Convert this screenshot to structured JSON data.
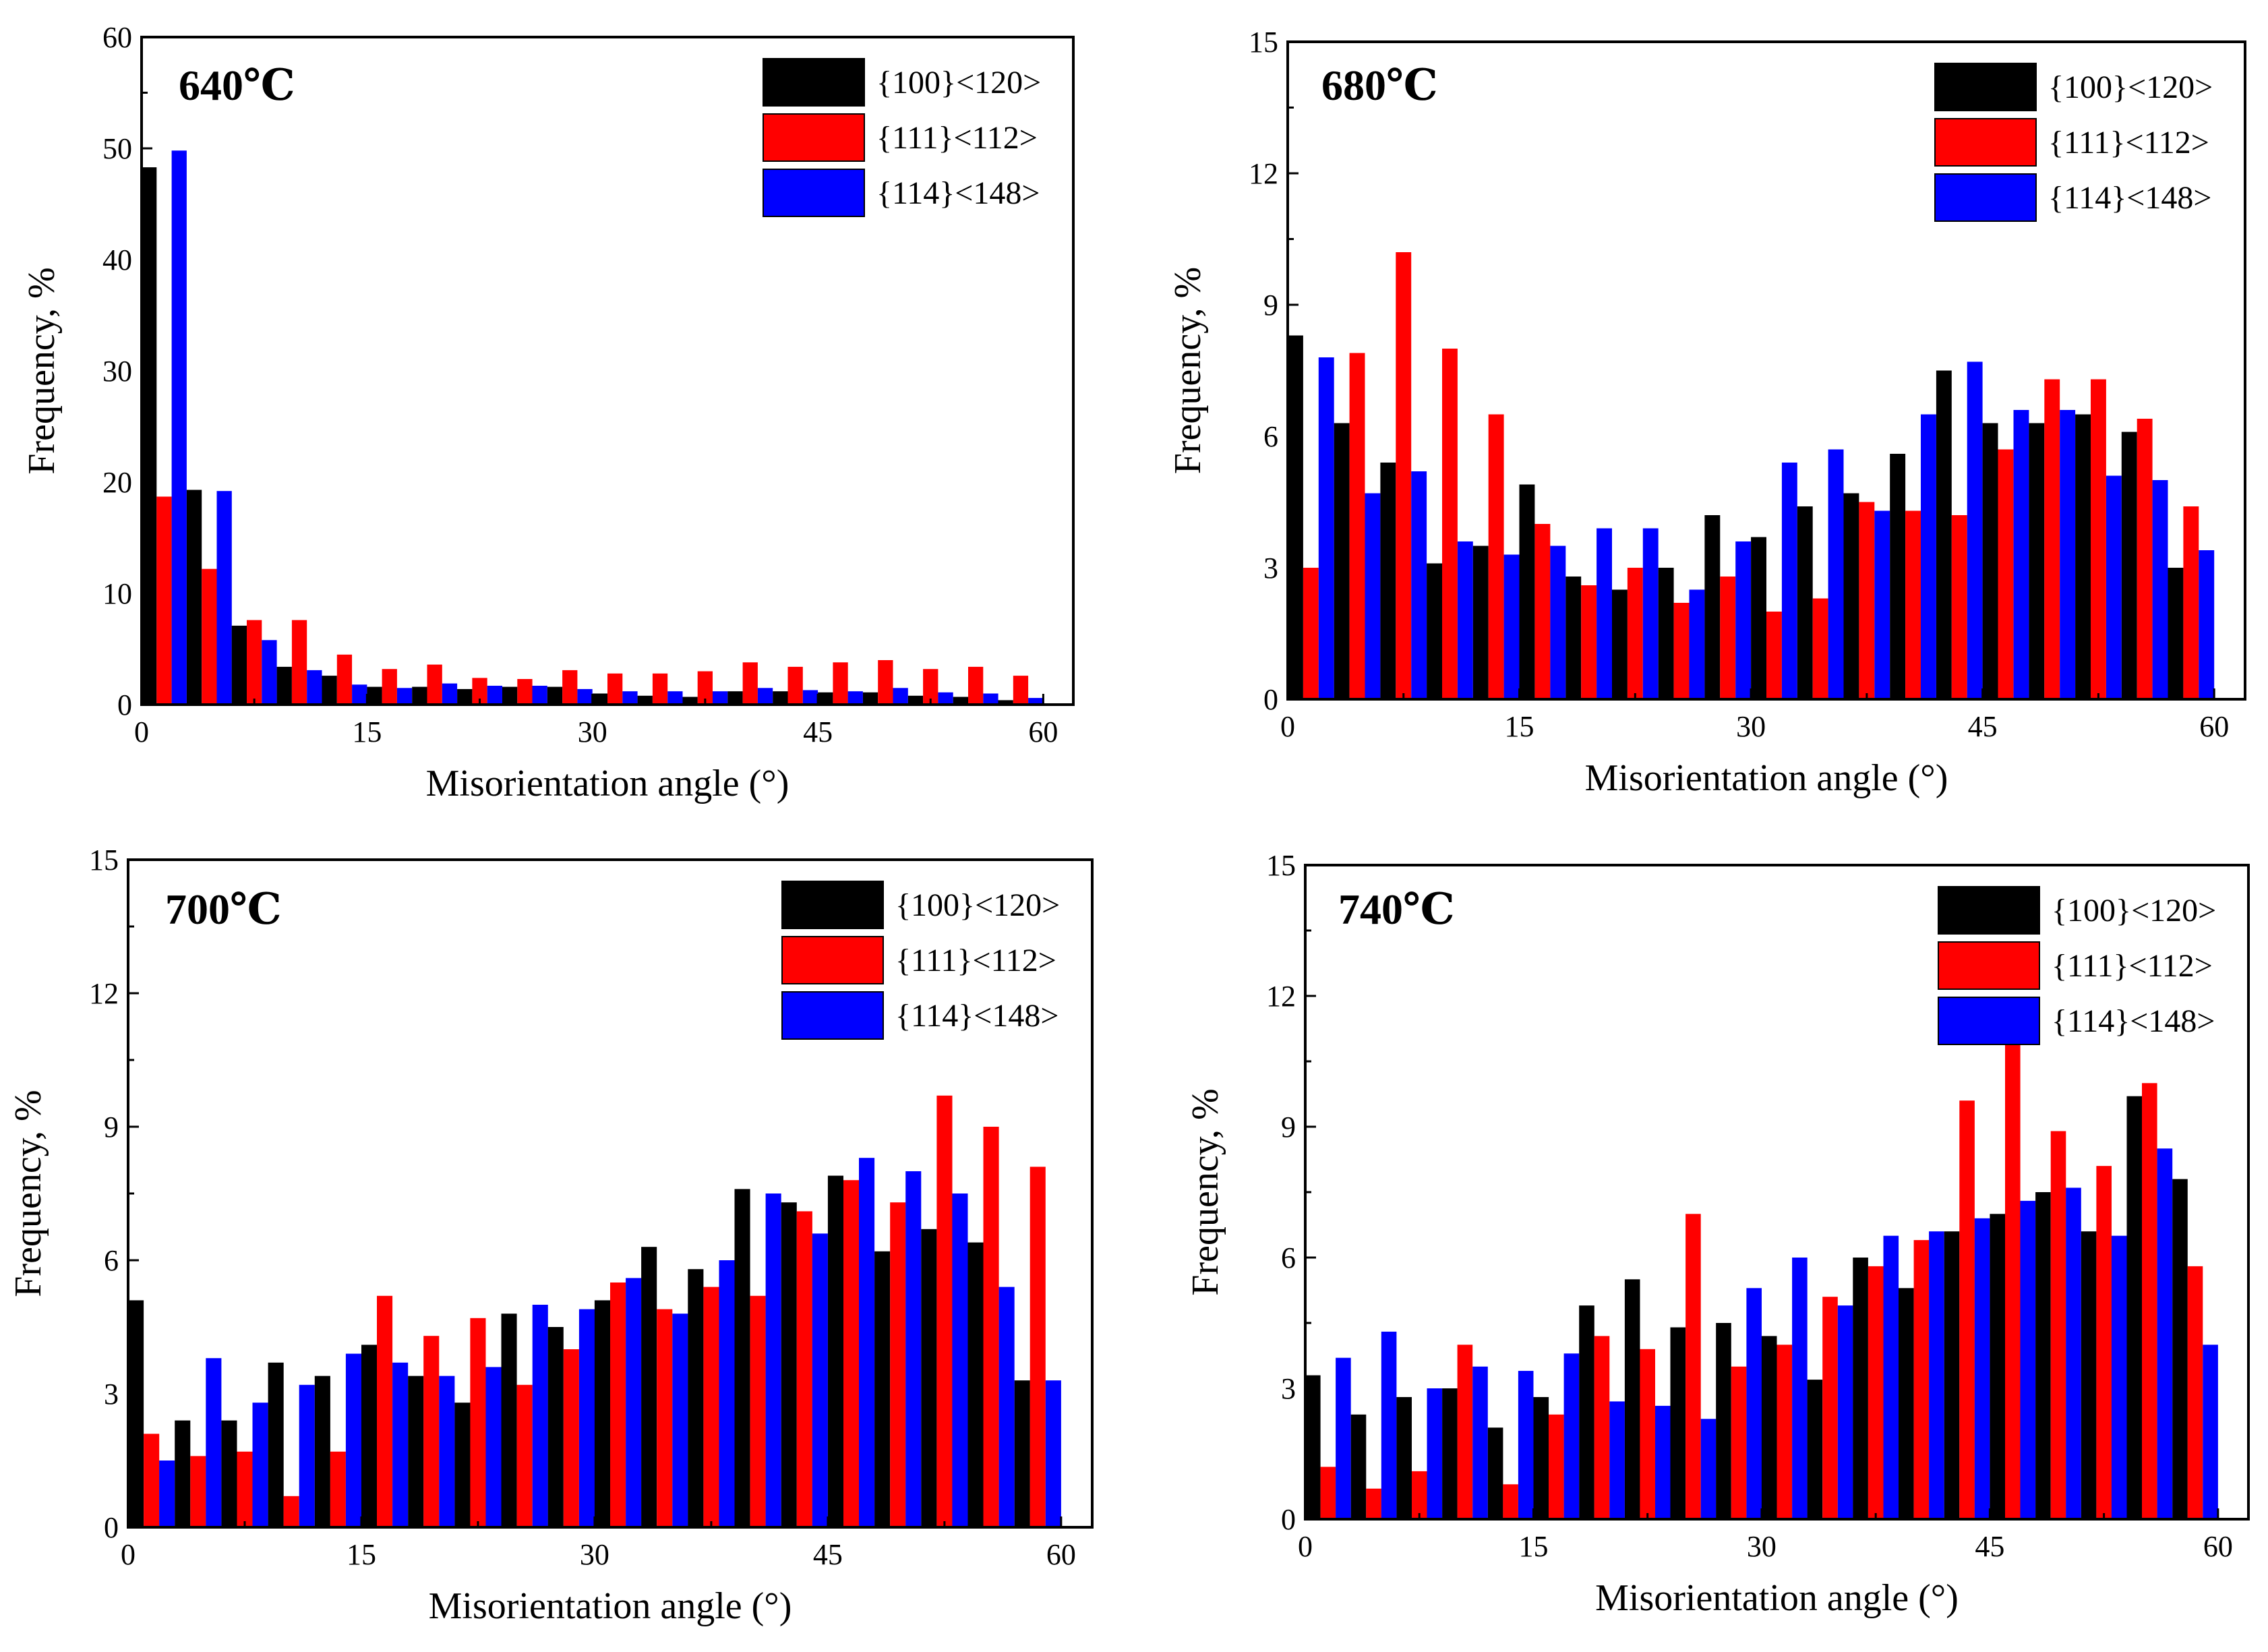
{
  "colors": {
    "s1": "#000000",
    "s2": "#ff0000",
    "s3": "#0000ff"
  },
  "chart_data": [
    {
      "type": "bar",
      "title": "640℃",
      "xlabel": "Misorientation angle (°)",
      "ylabel": "Frequency, %",
      "xlim": [
        0,
        62
      ],
      "ylim": [
        0,
        60
      ],
      "xticks": [
        0,
        15,
        30,
        45,
        60
      ],
      "yticks": [
        0,
        10,
        20,
        30,
        40,
        50,
        60
      ],
      "legend": "top-right",
      "x": [
        3,
        6,
        9,
        12,
        15,
        18,
        21,
        24,
        27,
        30,
        33,
        36,
        39,
        42,
        45,
        48,
        51,
        54,
        57,
        60
      ],
      "series": [
        {
          "name": "{100}<120>",
          "values": [
            48.3,
            19.3,
            7.1,
            3.4,
            2.6,
            1.6,
            1.6,
            1.4,
            1.6,
            1.6,
            1.0,
            0.8,
            0.7,
            1.2,
            1.2,
            1.1,
            1.1,
            0.8,
            0.7,
            0.4
          ]
        },
        {
          "name": "{111}<112>",
          "values": [
            18.7,
            12.2,
            7.6,
            7.6,
            4.5,
            3.2,
            3.6,
            2.4,
            2.3,
            3.1,
            2.8,
            2.8,
            3.0,
            3.8,
            3.4,
            3.8,
            4.0,
            3.2,
            3.4,
            2.6
          ]
        },
        {
          "name": "{114}<148>",
          "values": [
            49.8,
            19.2,
            5.8,
            3.1,
            1.8,
            1.5,
            1.9,
            1.7,
            1.7,
            1.4,
            1.2,
            1.2,
            1.2,
            1.5,
            1.3,
            1.2,
            1.5,
            1.1,
            1.0,
            0.6
          ]
        }
      ]
    },
    {
      "type": "bar",
      "title": "680℃",
      "xlabel": "Misorientation angle (°)",
      "ylabel": "Frequency, %",
      "xlim": [
        0,
        62
      ],
      "ylim": [
        0,
        15
      ],
      "xticks": [
        0,
        15,
        30,
        45,
        60
      ],
      "yticks": [
        0,
        3,
        6,
        9,
        12,
        15
      ],
      "legend": "top-right",
      "x": [
        3,
        6,
        9,
        12,
        15,
        18,
        21,
        24,
        27,
        30,
        33,
        36,
        39,
        42,
        45,
        48,
        51,
        54,
        57,
        60
      ],
      "series": [
        {
          "name": "{100}<120>",
          "values": [
            8.3,
            6.3,
            5.4,
            3.1,
            3.5,
            4.9,
            2.8,
            2.5,
            3.0,
            4.2,
            3.7,
            4.4,
            4.7,
            5.6,
            7.5,
            6.3,
            6.3,
            6.5,
            6.1,
            3.0
          ]
        },
        {
          "name": "{111}<112>",
          "values": [
            3.0,
            7.9,
            10.2,
            8.0,
            6.5,
            4.0,
            2.6,
            3.0,
            2.2,
            2.8,
            2.0,
            2.3,
            4.5,
            4.3,
            4.2,
            5.7,
            7.3,
            7.3,
            6.4,
            4.4
          ]
        },
        {
          "name": "{114}<148>",
          "values": [
            7.8,
            4.7,
            5.2,
            3.6,
            3.3,
            3.5,
            3.9,
            3.9,
            2.5,
            3.6,
            5.4,
            5.7,
            4.3,
            6.5,
            7.7,
            6.6,
            6.6,
            5.1,
            5.0,
            3.4
          ]
        }
      ]
    },
    {
      "type": "bar",
      "title": "700℃",
      "xlabel": "Misorientation angle (°)",
      "ylabel": "Frequency, %",
      "xlim": [
        0,
        62
      ],
      "ylim": [
        0,
        15
      ],
      "xticks": [
        0,
        15,
        30,
        45,
        60
      ],
      "yticks": [
        0,
        3,
        6,
        9,
        12,
        15
      ],
      "legend": "top-right",
      "x": [
        3,
        6,
        9,
        12,
        15,
        18,
        21,
        24,
        27,
        30,
        33,
        36,
        39,
        42,
        45,
        48,
        51,
        54,
        57,
        60
      ],
      "series": [
        {
          "name": "{100}<120>",
          "values": [
            5.1,
            2.4,
            2.4,
            3.7,
            3.4,
            4.1,
            3.4,
            2.8,
            4.8,
            4.5,
            5.1,
            6.3,
            5.8,
            7.6,
            7.3,
            7.9,
            6.2,
            6.7,
            6.4,
            3.3
          ]
        },
        {
          "name": "{111}<112>",
          "values": [
            2.1,
            1.6,
            1.7,
            0.7,
            1.7,
            5.2,
            4.3,
            4.7,
            3.2,
            4.0,
            5.5,
            4.9,
            5.4,
            5.2,
            7.1,
            7.8,
            7.3,
            9.7,
            9.0,
            8.1
          ]
        },
        {
          "name": "{114}<148>",
          "values": [
            1.5,
            3.8,
            2.8,
            3.2,
            3.9,
            3.7,
            3.4,
            3.6,
            5.0,
            4.9,
            5.6,
            4.8,
            6.0,
            7.5,
            6.6,
            8.3,
            8.0,
            7.5,
            5.4,
            3.3
          ]
        }
      ]
    },
    {
      "type": "bar",
      "title": "740℃",
      "xlabel": "Misorientation angle (°)",
      "ylabel": "Frequency, %",
      "xlim": [
        0,
        62
      ],
      "ylim": [
        0,
        15
      ],
      "xticks": [
        0,
        15,
        30,
        45,
        60
      ],
      "yticks": [
        0,
        3,
        6,
        9,
        12,
        15
      ],
      "legend": "top-right",
      "x": [
        3,
        6,
        9,
        12,
        15,
        18,
        21,
        24,
        27,
        30,
        33,
        36,
        39,
        42,
        45,
        48,
        51,
        54,
        57,
        60
      ],
      "series": [
        {
          "name": "{100}<120>",
          "values": [
            3.3,
            2.4,
            2.8,
            3.0,
            2.1,
            2.8,
            4.9,
            5.5,
            4.4,
            4.5,
            4.2,
            3.2,
            6.0,
            5.3,
            6.6,
            7.0,
            7.5,
            6.6,
            9.7,
            7.8
          ]
        },
        {
          "name": "{111}<112>",
          "values": [
            1.2,
            0.7,
            1.1,
            4.0,
            0.8,
            2.4,
            4.2,
            3.9,
            7.0,
            3.5,
            4.0,
            5.1,
            5.8,
            6.4,
            9.6,
            10.9,
            8.9,
            8.1,
            10.0,
            5.8
          ]
        },
        {
          "name": "{114}<148>",
          "values": [
            3.7,
            4.3,
            3.0,
            3.5,
            3.4,
            3.8,
            2.7,
            2.6,
            2.3,
            5.3,
            6.0,
            4.9,
            6.5,
            6.6,
            6.9,
            7.3,
            7.6,
            6.5,
            8.5,
            4.0
          ]
        }
      ]
    }
  ]
}
